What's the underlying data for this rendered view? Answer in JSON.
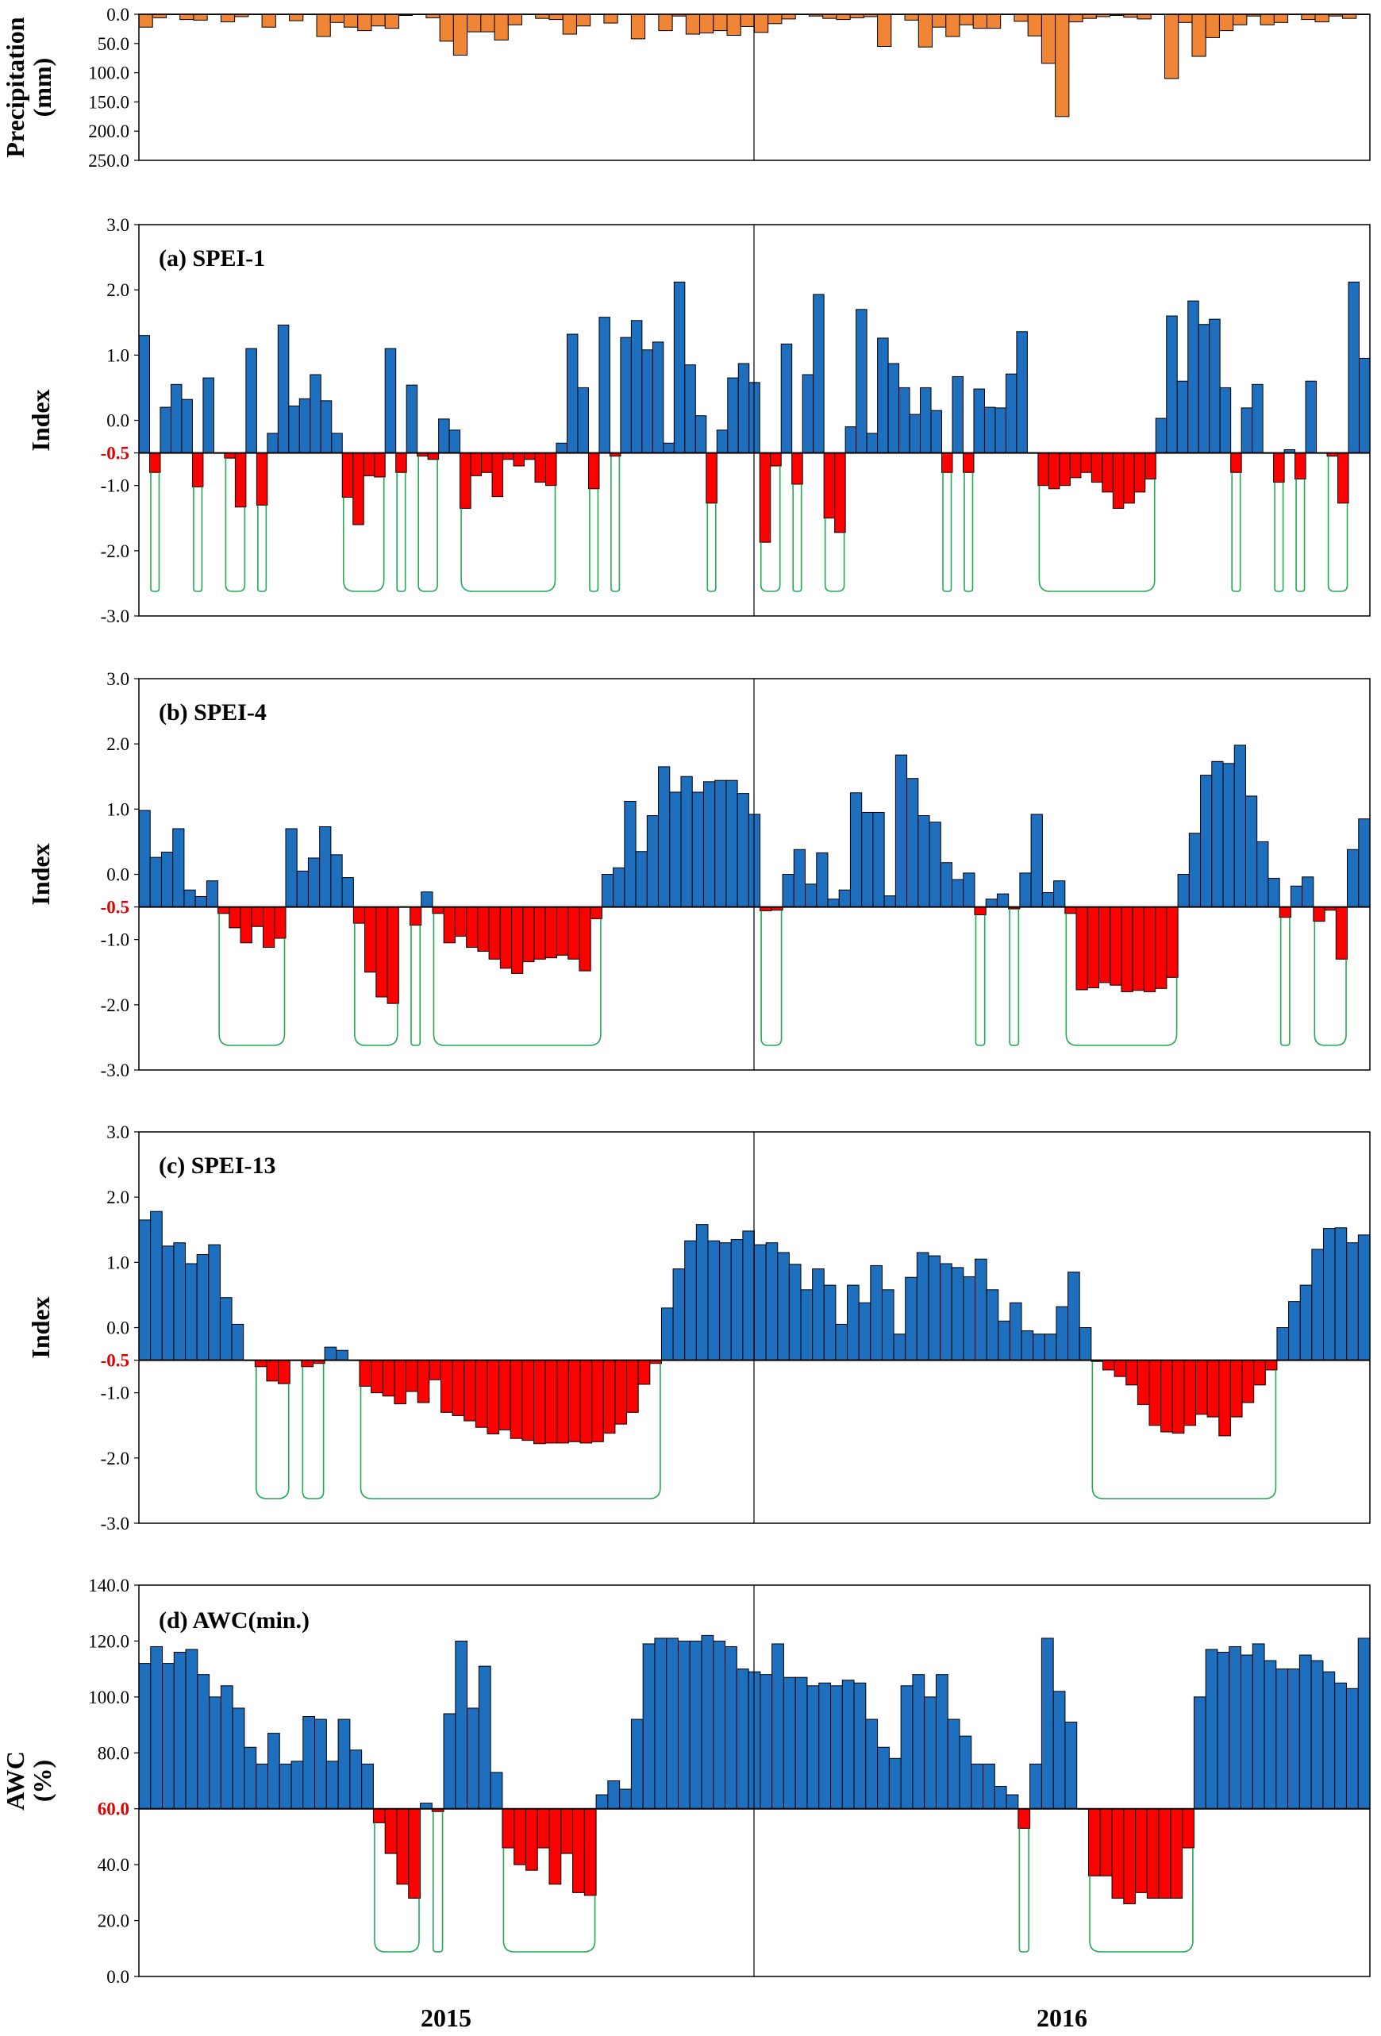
{
  "colors": {
    "positive": "#1f6fbf",
    "negative": "#ff0000",
    "precip": "#f08536",
    "envelope": "#22aa55",
    "threshold_label": "#e00000"
  },
  "x_axis": {
    "labels": [
      "2015",
      "2016"
    ]
  },
  "chart_data": [
    {
      "type": "bar",
      "id": "precip",
      "title": "",
      "ylabel_lines": [
        "Precipitation",
        "(mm)"
      ],
      "ylim": [
        0,
        250
      ],
      "inverted": true,
      "yticks": [
        "0.0",
        "50.0",
        "100.0",
        "150.0",
        "200.0",
        "250.0"
      ],
      "values": [
        22,
        6,
        0,
        9,
        10,
        0,
        13,
        4,
        0,
        22,
        0,
        11,
        0,
        38,
        14,
        22,
        28,
        20,
        24,
        2,
        0,
        6,
        46,
        70,
        30,
        30,
        44,
        18,
        0,
        7,
        9,
        34,
        20,
        0,
        15,
        0,
        42,
        0,
        28,
        3,
        34,
        32,
        28,
        36,
        21,
        31,
        16,
        8,
        0,
        3,
        7,
        9,
        6,
        4,
        55,
        0,
        10,
        56,
        22,
        38,
        18,
        24,
        24,
        0,
        12,
        37,
        84,
        175,
        13,
        7,
        4,
        2,
        5,
        8,
        0,
        110,
        14,
        72,
        40,
        28,
        18,
        3,
        18,
        14,
        0,
        9,
        13,
        3,
        7,
        0
      ]
    },
    {
      "type": "bar",
      "id": "spei1",
      "title": "(a) SPEI-1",
      "ylabel_lines": [
        "Index"
      ],
      "ylim": [
        -3.0,
        3.0
      ],
      "threshold": -0.5,
      "yticks": [
        "3.0",
        "2.0",
        "1.0",
        "0.0",
        "-0.5",
        "-1.0",
        "-2.0",
        "-3.0"
      ],
      "values": [
        1.3,
        -0.8,
        0.2,
        0.55,
        0.32,
        -1.02,
        0.65,
        -0.5,
        -0.58,
        -1.33,
        1.1,
        -1.3,
        -0.2,
        1.46,
        0.22,
        0.33,
        0.7,
        0.3,
        -0.2,
        -1.18,
        -1.6,
        -0.85,
        -0.87,
        1.1,
        -0.8,
        0.54,
        -0.55,
        -0.6,
        0.02,
        -0.15,
        -1.35,
        -0.85,
        -0.8,
        -1.17,
        -0.6,
        -0.7,
        -0.6,
        -0.95,
        -1.0,
        -0.35,
        1.32,
        0.5,
        -1.05,
        1.58,
        -0.55,
        1.27,
        1.53,
        1.08,
        1.2,
        -0.35,
        2.12,
        0.85,
        0.07,
        -1.27,
        -0.15,
        0.65,
        0.87,
        0.58,
        -1.87,
        -0.7,
        1.17,
        -0.98,
        0.7,
        1.93,
        -1.5,
        -1.72,
        -0.1,
        1.7,
        -0.2,
        1.26,
        0.87,
        0.5,
        0.09,
        0.5,
        0.15,
        -0.8,
        0.67,
        -0.8,
        0.48,
        0.2,
        0.19,
        0.71,
        1.36,
        -0.5,
        -1.0,
        -1.05,
        -1.0,
        -0.88,
        -0.8,
        -0.95,
        -1.1,
        -1.35,
        -1.27,
        -1.1,
        -0.9,
        0.03,
        1.6,
        0.6,
        1.83,
        1.47,
        1.55,
        0.5,
        -0.8,
        0.19,
        0.55,
        -0.5,
        -0.95,
        -0.45,
        -0.9,
        0.6,
        -0.5,
        -0.55,
        -1.27,
        2.12,
        0.95
      ]
    },
    {
      "type": "bar",
      "id": "spei4",
      "title": "(b) SPEI-4",
      "ylabel_lines": [
        "Index"
      ],
      "ylim": [
        -3.0,
        3.0
      ],
      "threshold": -0.5,
      "yticks": [
        "3.0",
        "2.0",
        "1.0",
        "0.0",
        "-0.5",
        "-1.0",
        "-2.0",
        "-3.0"
      ],
      "values": [
        0.98,
        0.26,
        0.34,
        0.7,
        -0.24,
        -0.34,
        -0.1,
        -0.6,
        -0.82,
        -1.05,
        -0.8,
        -1.12,
        -0.98,
        0.7,
        0.05,
        0.25,
        0.73,
        0.3,
        -0.05,
        -0.75,
        -1.5,
        -1.88,
        -1.98,
        -0.5,
        -0.78,
        -0.27,
        -0.6,
        -1.05,
        -0.95,
        -1.12,
        -1.18,
        -1.3,
        -1.44,
        -1.52,
        -1.34,
        -1.3,
        -1.28,
        -1.24,
        -1.3,
        -1.48,
        -0.68,
        0.0,
        0.1,
        1.12,
        0.35,
        0.9,
        1.65,
        1.26,
        1.5,
        1.26,
        1.42,
        1.44,
        1.44,
        1.24,
        0.92,
        -0.56,
        -0.55,
        0.0,
        0.38,
        -0.15,
        0.33,
        -0.38,
        -0.24,
        1.25,
        0.95,
        0.95,
        -0.33,
        1.83,
        1.47,
        0.9,
        0.8,
        0.18,
        -0.08,
        0.02,
        -0.62,
        -0.38,
        -0.3,
        -0.53,
        0.02,
        0.92,
        -0.28,
        -0.1,
        -0.6,
        -1.77,
        -1.74,
        -1.66,
        -1.7,
        -1.8,
        -1.78,
        -1.8,
        -1.75,
        -1.58,
        0.0,
        0.63,
        1.52,
        1.73,
        1.7,
        1.98,
        1.2,
        0.5,
        -0.06,
        -0.66,
        -0.18,
        -0.04,
        -0.72,
        -0.55,
        -1.3,
        0.38,
        0.85
      ]
    },
    {
      "type": "bar",
      "id": "spei13",
      "title": "(c) SPEI-13",
      "ylabel_lines": [
        "Index"
      ],
      "ylim": [
        -3.0,
        3.0
      ],
      "threshold": -0.5,
      "yticks": [
        "3.0",
        "2.0",
        "1.0",
        "0.0",
        "-0.5",
        "-1.0",
        "-2.0",
        "-3.0"
      ],
      "values": [
        1.65,
        1.78,
        1.25,
        1.3,
        0.98,
        1.12,
        1.27,
        0.46,
        0.05,
        -0.5,
        -0.6,
        -0.82,
        -0.86,
        -0.5,
        -0.6,
        -0.55,
        -0.3,
        -0.35,
        -0.5,
        -0.9,
        -1.0,
        -1.05,
        -1.17,
        -0.98,
        -1.15,
        -0.8,
        -1.3,
        -1.35,
        -1.43,
        -1.53,
        -1.63,
        -1.57,
        -1.7,
        -1.73,
        -1.78,
        -1.77,
        -1.77,
        -1.75,
        -1.77,
        -1.75,
        -1.62,
        -1.48,
        -1.3,
        -0.87,
        -0.55,
        0.3,
        0.9,
        1.33,
        1.58,
        1.33,
        1.3,
        1.35,
        1.48,
        1.27,
        1.3,
        1.15,
        0.97,
        0.58,
        0.9,
        0.65,
        0.05,
        0.65,
        0.38,
        0.95,
        0.58,
        -0.1,
        0.77,
        1.15,
        1.1,
        0.98,
        0.92,
        0.78,
        1.05,
        0.58,
        0.1,
        0.38,
        -0.05,
        -0.1,
        -0.1,
        0.32,
        0.85,
        0.0,
        -0.52,
        -0.65,
        -0.75,
        -0.88,
        -1.18,
        -1.5,
        -1.6,
        -1.62,
        -1.5,
        -1.33,
        -1.37,
        -1.66,
        -1.37,
        -1.15,
        -0.88,
        -0.65,
        0.0,
        0.4,
        0.65,
        1.2,
        1.52,
        1.53,
        1.3,
        1.42
      ]
    },
    {
      "type": "bar",
      "id": "awc",
      "title": "(d) AWC(min.)",
      "ylabel_lines": [
        "AWC",
        "(%)"
      ],
      "ylim": [
        0,
        140
      ],
      "threshold": 60,
      "yticks": [
        "140.0",
        "120.0",
        "100.0",
        "80.0",
        "60.0",
        "40.0",
        "20.0",
        "0.0"
      ],
      "values": [
        112,
        118,
        112,
        116,
        117,
        108,
        100,
        104,
        96,
        82,
        76,
        87,
        76,
        77,
        93,
        92,
        77,
        92,
        81,
        76,
        55,
        44,
        33,
        28,
        62,
        59,
        94,
        120,
        96,
        111,
        73,
        46,
        40,
        38,
        46,
        33,
        44,
        30,
        29,
        65,
        70,
        67,
        92,
        119,
        121,
        121,
        120,
        120,
        122,
        120,
        118,
        110,
        109,
        108,
        119,
        107,
        107,
        104,
        105,
        104,
        106,
        105,
        92,
        82,
        78,
        104,
        108,
        100,
        108,
        92,
        86,
        76,
        76,
        68,
        65,
        53,
        76,
        121,
        102,
        91,
        60,
        36,
        36,
        28,
        26,
        30,
        28,
        28,
        28,
        46,
        100,
        117,
        116,
        118,
        115,
        119,
        113,
        110,
        110,
        115,
        113,
        109,
        105,
        103,
        121
      ]
    }
  ]
}
